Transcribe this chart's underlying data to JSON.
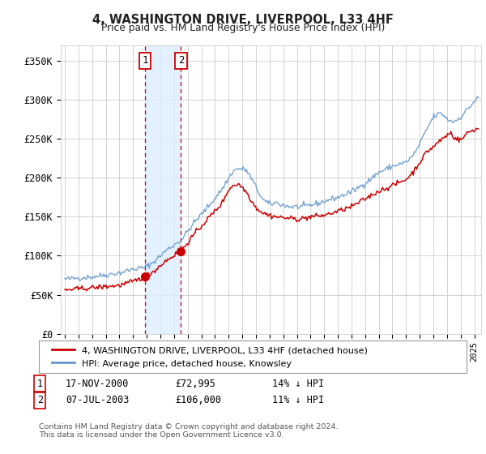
{
  "title": "4, WASHINGTON DRIVE, LIVERPOOL, L33 4HF",
  "subtitle": "Price paid vs. HM Land Registry's House Price Index (HPI)",
  "ylabel_ticks": [
    "£0",
    "£50K",
    "£100K",
    "£150K",
    "£200K",
    "£250K",
    "£300K",
    "£350K"
  ],
  "ytick_values": [
    0,
    50000,
    100000,
    150000,
    200000,
    250000,
    300000,
    350000
  ],
  "ylim": [
    0,
    370000
  ],
  "xlim_start": 1994.7,
  "xlim_end": 2025.5,
  "purchase1": {
    "date_num": 2000.88,
    "price": 72995,
    "label": "1",
    "date_str": "17-NOV-2000",
    "price_str": "£72,995",
    "pct": "14% ↓ HPI"
  },
  "purchase2": {
    "date_num": 2003.51,
    "price": 106000,
    "label": "2",
    "date_str": "07-JUL-2003",
    "price_str": "£106,000",
    "pct": "11% ↓ HPI"
  },
  "legend_line1": "4, WASHINGTON DRIVE, LIVERPOOL, L33 4HF (detached house)",
  "legend_line2": "HPI: Average price, detached house, Knowsley",
  "footnote": "Contains HM Land Registry data © Crown copyright and database right 2024.\nThis data is licensed under the Open Government Licence v3.0.",
  "line_color_red": "#cc0000",
  "line_color_blue": "#6699cc",
  "shade_color": "#ddeeff",
  "box_color": "#cc0000",
  "grid_color": "#cccccc",
  "background_color": "#ffffff"
}
